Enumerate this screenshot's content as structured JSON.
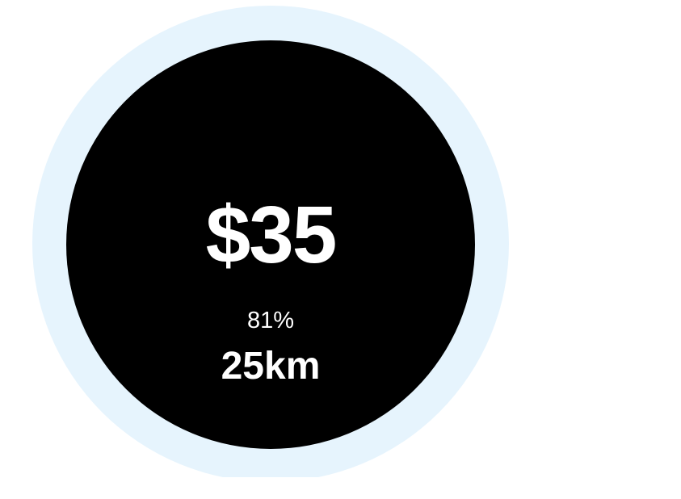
{
  "card": {
    "price": "$35",
    "percent": "81%",
    "distance": "25km"
  },
  "colors": {
    "background": "#ffffff",
    "ring": "#e6f4fd",
    "circle": "#000000",
    "text": "#ffffff"
  }
}
